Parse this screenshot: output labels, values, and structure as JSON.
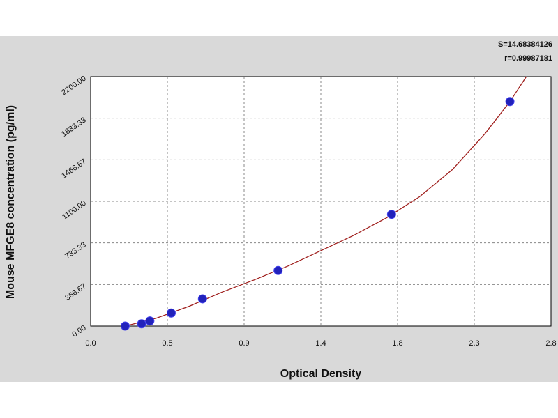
{
  "chart_data": {
    "type": "scatter",
    "stats": {
      "s_line": "S=14.68384126",
      "r_line": "r=0.99987181"
    },
    "xlabel": "Optical Density",
    "ylabel": "Mouse MFGE8 concentration (pg/ml)",
    "xlim": [
      0.0,
      2.8
    ],
    "ylim": [
      0.0,
      2200.0
    ],
    "x_ticks": [
      "0.0",
      "0.5",
      "0.9",
      "1.4",
      "1.8",
      "2.3",
      "2.8"
    ],
    "y_ticks": [
      "0.00",
      "366.67",
      "733.33",
      "1100.00",
      "1466.67",
      "1833.33",
      "2200.00"
    ],
    "grid": true,
    "points": [
      {
        "x": 0.21,
        "y": 0
      },
      {
        "x": 0.31,
        "y": 20
      },
      {
        "x": 0.36,
        "y": 45
      },
      {
        "x": 0.49,
        "y": 115
      },
      {
        "x": 0.68,
        "y": 240
      },
      {
        "x": 1.14,
        "y": 490
      },
      {
        "x": 1.83,
        "y": 985
      },
      {
        "x": 2.55,
        "y": 1980
      }
    ],
    "fit_curve": {
      "x": [
        0.21,
        0.4,
        0.6,
        0.8,
        1.0,
        1.2,
        1.4,
        1.6,
        1.8,
        2.0,
        2.2,
        2.4,
        2.55,
        2.65
      ],
      "y": [
        0,
        70,
        175,
        300,
        410,
        530,
        665,
        800,
        955,
        1140,
        1380,
        1700,
        1980,
        2200
      ]
    },
    "colors": {
      "points": "#2222bb",
      "curve": "#a0201e",
      "grid": "#888888",
      "plot_bg": "#ffffff",
      "figure_bg": "#d9d9d9"
    }
  }
}
